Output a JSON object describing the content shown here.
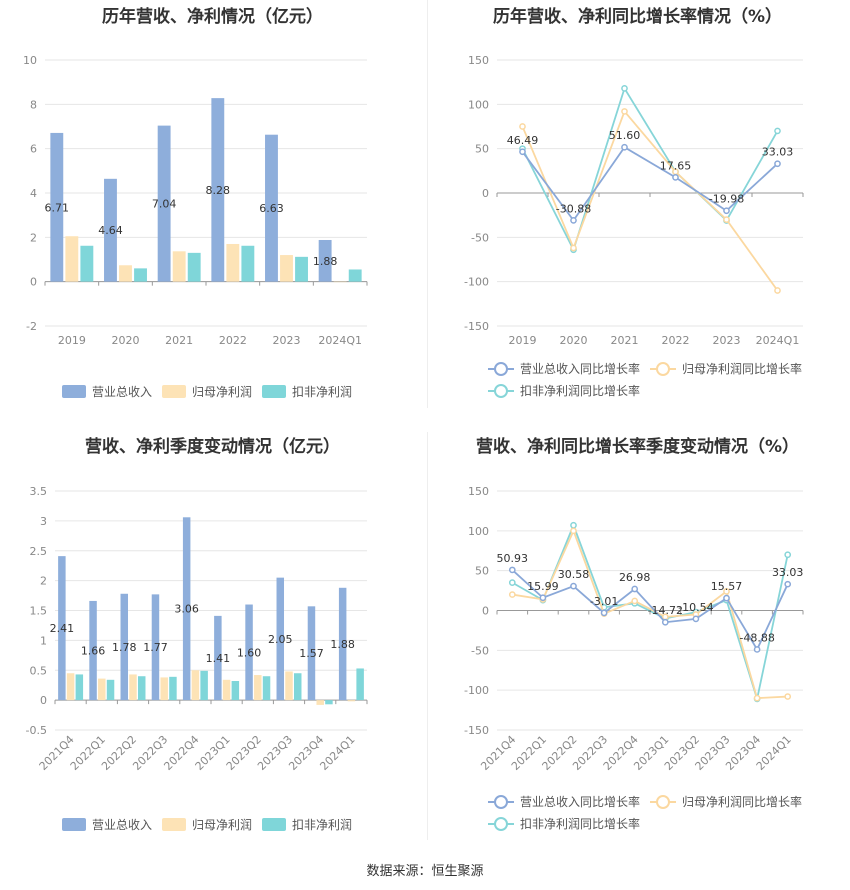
{
  "colors": {
    "revenue": "#8eaedb",
    "parent": "#fde3b6",
    "deducted": "#7fd6d9",
    "revenue_line": "#8aa8d8",
    "parent_line": "#fbd8a0",
    "deducted_line": "#86d5d8"
  },
  "footer": {
    "source": "数据来源：恒生聚源"
  },
  "chart_data": [
    {
      "type": "bar",
      "title": "历年营收、净利情况（亿元）",
      "categories": [
        "2019",
        "2020",
        "2021",
        "2022",
        "2023",
        "2024Q1"
      ],
      "ylim": [
        -2,
        10
      ],
      "yticks": [
        -2,
        0,
        2,
        4,
        6,
        8,
        10
      ],
      "grid": true,
      "legend": "bottom",
      "tick_rotate": 0,
      "series": [
        {
          "name": "营业总收入",
          "values": [
            6.71,
            4.64,
            7.04,
            8.28,
            6.63,
            1.88
          ],
          "labels": [
            "6.71",
            "4.64",
            "7.04",
            "8.28",
            "6.63",
            "1.88"
          ]
        },
        {
          "name": "归母净利润",
          "values": [
            2.05,
            0.74,
            1.37,
            1.7,
            1.2,
            -0.02
          ]
        },
        {
          "name": "扣非净利润",
          "values": [
            1.62,
            0.6,
            1.3,
            1.62,
            1.12,
            0.55
          ]
        }
      ]
    },
    {
      "type": "line",
      "title": "历年营收、净利同比增长率情况（%）",
      "categories": [
        "2019",
        "2020",
        "2021",
        "2022",
        "2023",
        "2024Q1"
      ],
      "ylim": [
        -150,
        150
      ],
      "yticks": [
        -150,
        -100,
        -50,
        0,
        50,
        100,
        150
      ],
      "grid": true,
      "legend": "bottom",
      "tick_rotate": 0,
      "series": [
        {
          "name": "营业总收入同比增长率",
          "values": [
            46.49,
            -30.88,
            51.6,
            17.65,
            -19.98,
            33.03
          ],
          "labels": [
            "46.49",
            "-30.88",
            "51.60",
            "17.65",
            "-19.98",
            "33.03"
          ]
        },
        {
          "name": "归母净利润同比增长率",
          "values": [
            75,
            -62,
            92,
            24,
            -30,
            -110
          ]
        },
        {
          "name": "扣非净利润同比增长率",
          "values": [
            50,
            -64,
            118,
            24,
            -31,
            70
          ]
        }
      ]
    },
    {
      "type": "bar",
      "title": "营收、净利季度变动情况（亿元）",
      "categories": [
        "2021Q4",
        "2022Q1",
        "2022Q2",
        "2022Q3",
        "2022Q4",
        "2023Q1",
        "2023Q2",
        "2023Q3",
        "2023Q4",
        "2024Q1"
      ],
      "ylim": [
        -0.5,
        3.5
      ],
      "yticks": [
        -0.5,
        0,
        0.5,
        1,
        1.5,
        2,
        2.5,
        3,
        3.5
      ],
      "grid": true,
      "legend": "bottom",
      "tick_rotate": -45,
      "series": [
        {
          "name": "营业总收入",
          "values": [
            2.41,
            1.66,
            1.78,
            1.77,
            3.06,
            1.41,
            1.6,
            2.05,
            1.57,
            1.88
          ],
          "labels": [
            "2.41",
            "1.66",
            "1.78",
            "1.77",
            "3.06",
            "1.41",
            "1.60",
            "2.05",
            "1.57",
            "1.88"
          ]
        },
        {
          "name": "归母净利润",
          "values": [
            0.45,
            0.36,
            0.43,
            0.38,
            0.5,
            0.34,
            0.42,
            0.48,
            -0.08,
            -0.02
          ]
        },
        {
          "name": "扣非净利润",
          "values": [
            0.43,
            0.34,
            0.4,
            0.39,
            0.49,
            0.32,
            0.4,
            0.45,
            -0.07,
            0.53
          ]
        }
      ]
    },
    {
      "type": "line",
      "title": "营收、净利同比增长率季度变动情况（%）",
      "categories": [
        "2021Q4",
        "2022Q1",
        "2022Q2",
        "2022Q3",
        "2022Q4",
        "2023Q1",
        "2023Q2",
        "2023Q3",
        "2023Q4",
        "2024Q1"
      ],
      "ylim": [
        -150,
        150
      ],
      "yticks": [
        -150,
        -100,
        -50,
        0,
        50,
        100,
        150
      ],
      "grid": true,
      "legend": "bottom",
      "tick_rotate": -45,
      "series": [
        {
          "name": "营业总收入同比增长率",
          "values": [
            50.93,
            15.99,
            30.58,
            -3.01,
            26.98,
            -14.72,
            -10.54,
            15.57,
            -48.88,
            33.03
          ],
          "labels": [
            "50.93",
            "15.99",
            "30.58",
            "-3.01",
            "26.98",
            "-14.72",
            "-10.54",
            "15.57",
            "-48.88",
            "33.03"
          ]
        },
        {
          "name": "归母净利润同比增长率",
          "values": [
            20,
            14,
            100,
            -4,
            12,
            -8,
            -5,
            24,
            -110,
            -108
          ]
        },
        {
          "name": "扣非净利润同比增长率",
          "values": [
            35,
            13,
            107,
            4,
            9,
            -10,
            -2,
            13,
            -111,
            70
          ]
        }
      ]
    }
  ]
}
